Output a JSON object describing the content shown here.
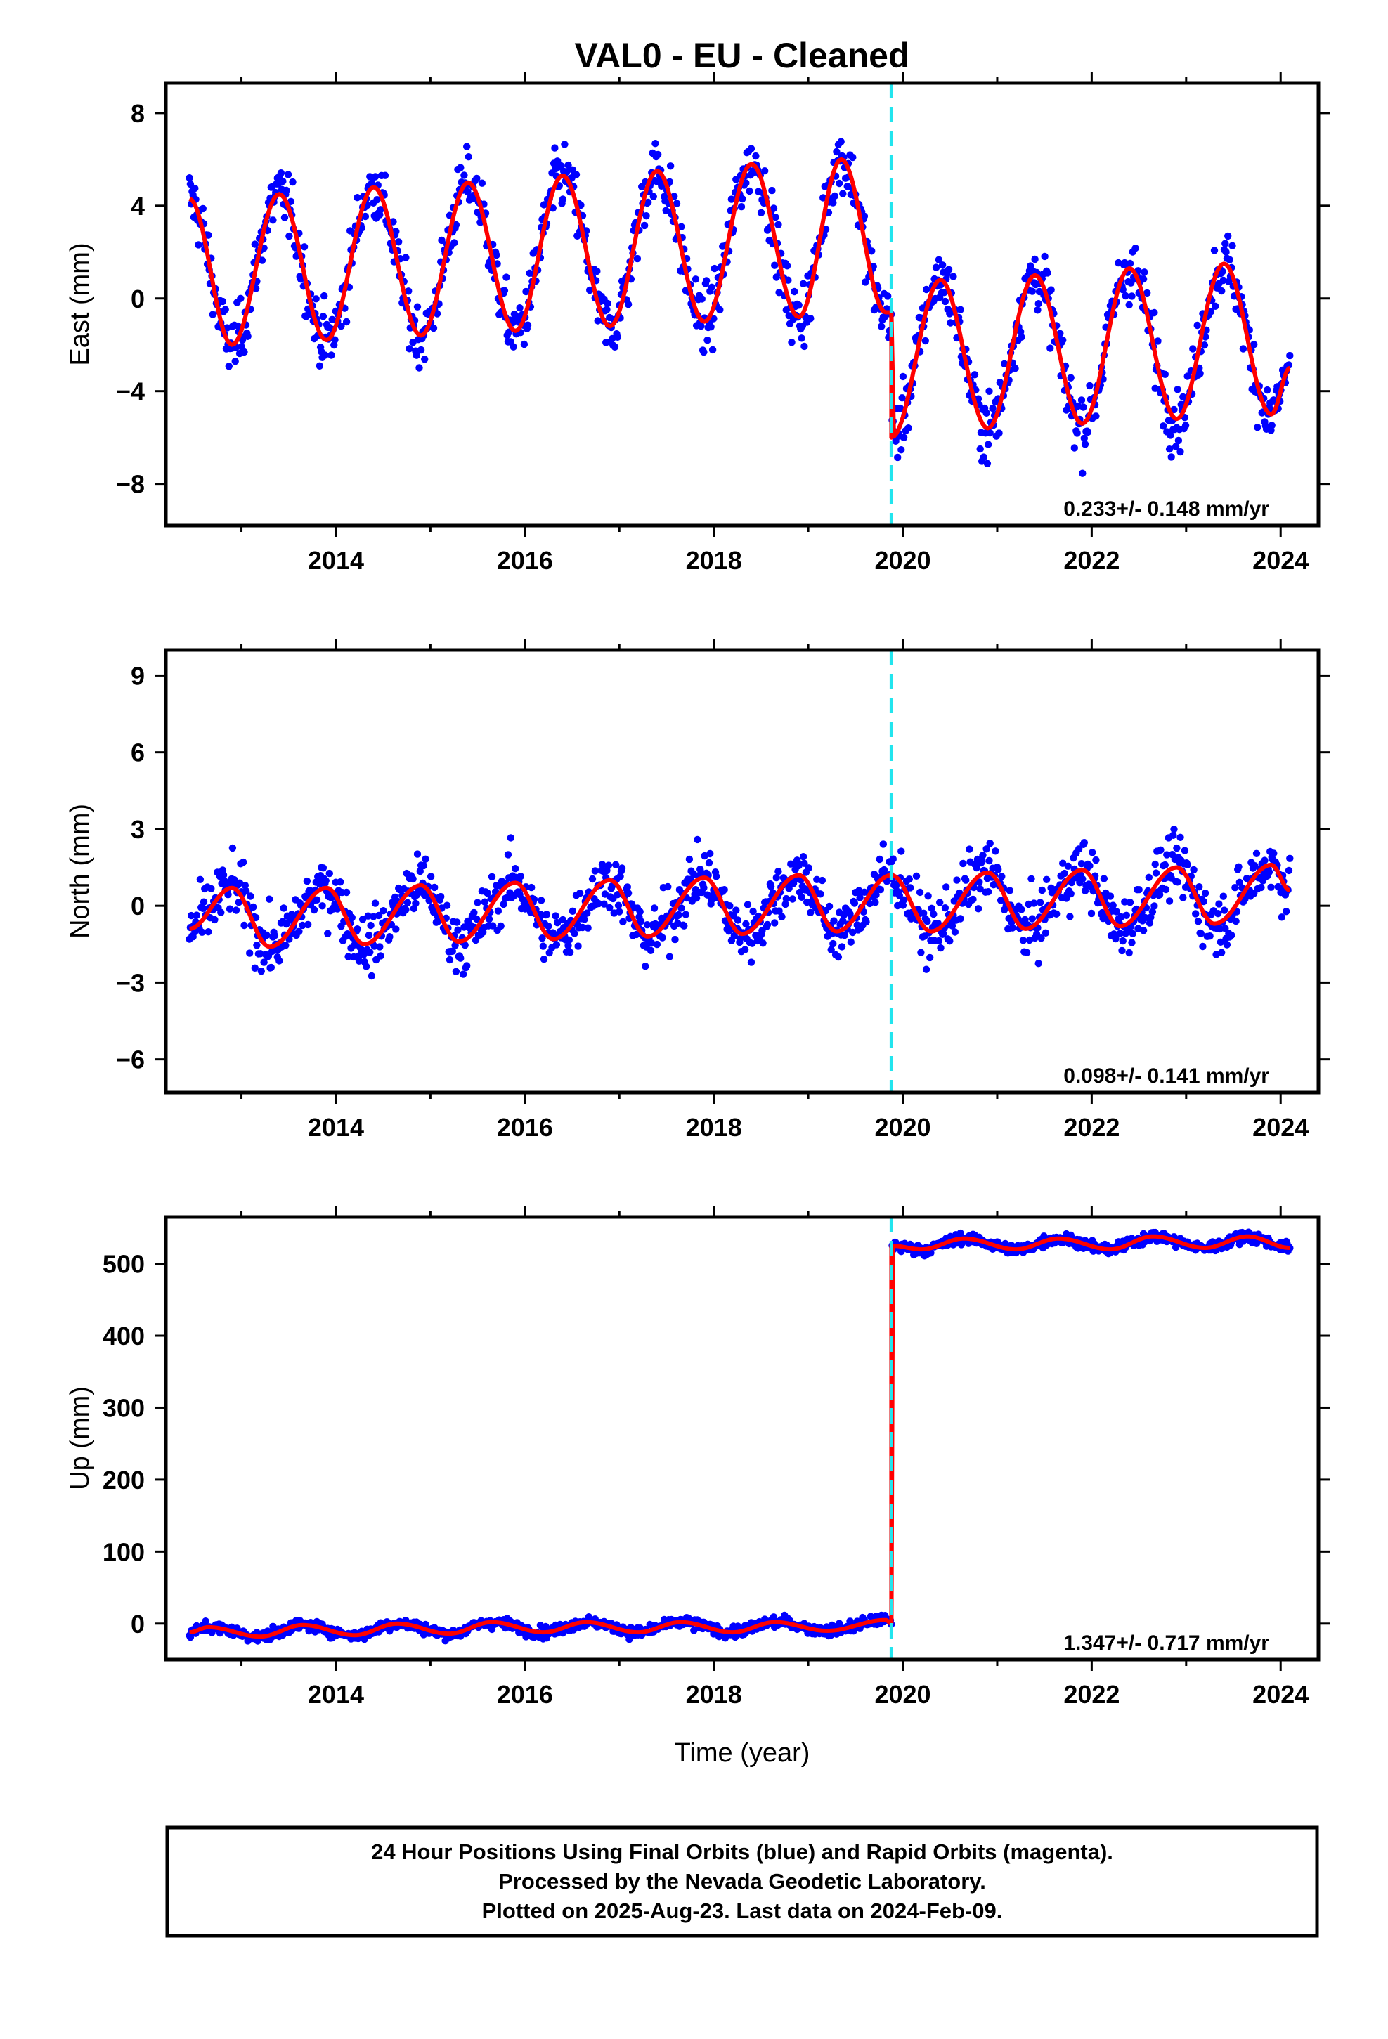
{
  "title": "VAL0  - EU - Cleaned",
  "xlabel": "Time (year)",
  "footer": {
    "line1": "24 Hour Positions Using Final Orbits (blue) and Rapid Orbits (magenta).",
    "line2": "Processed by the Nevada Geodetic Laboratory.",
    "line3": "Plotted on 2025-Aug-23. Last data on 2024-Feb-09."
  },
  "colors": {
    "points": "#0000ff",
    "model": "#ff0000",
    "offset_line": "#22e5ee",
    "frame": "#000000"
  },
  "chart_data": [
    {
      "type": "scatter",
      "name": "east",
      "ylabel": "East (mm)",
      "rate_text": "0.233+/- 0.148 mm/yr",
      "xlim": [
        2012.2,
        2024.4
      ],
      "ylim": [
        -9.8,
        9.3
      ],
      "xticks": [
        2014,
        2016,
        2018,
        2020,
        2022,
        2024
      ],
      "yticks": [
        -8,
        -4,
        0,
        4,
        8
      ],
      "ytick_labels": [
        "−8",
        "−4",
        "0",
        "4",
        "8"
      ],
      "offset_epoch": 2019.88,
      "point_color": "#0000ff",
      "model_color": "#ff0000",
      "model": [
        [
          2012.45,
          4.3
        ],
        [
          2012.9,
          -2.0
        ],
        [
          2013.4,
          4.5
        ],
        [
          2013.9,
          -1.8
        ],
        [
          2014.4,
          4.8
        ],
        [
          2014.9,
          -1.6
        ],
        [
          2015.4,
          5.0
        ],
        [
          2015.9,
          -1.4
        ],
        [
          2016.4,
          5.3
        ],
        [
          2016.9,
          -1.2
        ],
        [
          2017.4,
          5.5
        ],
        [
          2017.9,
          -1.0
        ],
        [
          2018.4,
          5.8
        ],
        [
          2018.9,
          -0.8
        ],
        [
          2019.35,
          6.0
        ],
        [
          2019.82,
          -0.6
        ],
        [
          2019.88,
          -0.6
        ],
        [
          2019.88,
          -6.0
        ],
        [
          2020.4,
          0.8
        ],
        [
          2020.9,
          -5.6
        ],
        [
          2021.4,
          1.0
        ],
        [
          2021.9,
          -5.4
        ],
        [
          2022.4,
          1.3
        ],
        [
          2022.9,
          -5.2
        ],
        [
          2023.4,
          1.5
        ],
        [
          2023.9,
          -5.0
        ],
        [
          2024.1,
          -3.0
        ]
      ]
    },
    {
      "type": "scatter",
      "name": "north",
      "ylabel": "North (mm)",
      "rate_text": "0.098+/- 0.141 mm/yr",
      "xlim": [
        2012.2,
        2024.4
      ],
      "ylim": [
        -7.3,
        10.0
      ],
      "xticks": [
        2014,
        2016,
        2018,
        2020,
        2022,
        2024
      ],
      "yticks": [
        -6,
        -3,
        0,
        3,
        6,
        9
      ],
      "ytick_labels": [
        "−6",
        "−3",
        "0",
        "3",
        "6",
        "9"
      ],
      "offset_epoch": 2019.88,
      "point_color": "#0000ff",
      "model_color": "#ff0000",
      "model": [
        [
          2012.45,
          -0.9
        ],
        [
          2012.9,
          0.7
        ],
        [
          2013.3,
          -1.6
        ],
        [
          2013.9,
          0.7
        ],
        [
          2014.3,
          -1.5
        ],
        [
          2014.9,
          0.8
        ],
        [
          2015.3,
          -1.4
        ],
        [
          2015.9,
          0.9
        ],
        [
          2016.3,
          -1.3
        ],
        [
          2016.9,
          1.0
        ],
        [
          2017.3,
          -1.2
        ],
        [
          2017.9,
          1.1
        ],
        [
          2018.3,
          -1.1
        ],
        [
          2018.9,
          1.2
        ],
        [
          2019.3,
          -1.0
        ],
        [
          2019.88,
          1.2
        ],
        [
          2020.3,
          -1.0
        ],
        [
          2020.9,
          1.3
        ],
        [
          2021.3,
          -0.9
        ],
        [
          2021.9,
          1.4
        ],
        [
          2022.3,
          -0.8
        ],
        [
          2022.9,
          1.5
        ],
        [
          2023.3,
          -0.7
        ],
        [
          2023.9,
          1.6
        ],
        [
          2024.1,
          0.6
        ]
      ]
    },
    {
      "type": "scatter",
      "name": "up",
      "ylabel": "Up (mm)",
      "rate_text": "1.347+/- 0.717 mm/yr",
      "xlim": [
        2012.2,
        2024.4
      ],
      "ylim": [
        -50,
        565
      ],
      "xticks": [
        2014,
        2016,
        2018,
        2020,
        2022,
        2024
      ],
      "yticks": [
        0,
        100,
        200,
        300,
        400,
        500
      ],
      "ytick_labels": [
        "0",
        "100",
        "200",
        "300",
        "400",
        "500"
      ],
      "offset_epoch": 2019.88,
      "point_color": "#0000ff",
      "model_color": "#ff0000",
      "model": [
        [
          2012.45,
          -12
        ],
        [
          2012.65,
          -5
        ],
        [
          2013.2,
          -18
        ],
        [
          2013.65,
          -2
        ],
        [
          2014.2,
          -16
        ],
        [
          2014.65,
          0
        ],
        [
          2015.2,
          -14
        ],
        [
          2015.65,
          2
        ],
        [
          2016.2,
          -12
        ],
        [
          2016.65,
          2
        ],
        [
          2017.2,
          -12
        ],
        [
          2017.65,
          2
        ],
        [
          2018.2,
          -12
        ],
        [
          2018.65,
          2
        ],
        [
          2019.2,
          -10
        ],
        [
          2019.82,
          5
        ],
        [
          2019.88,
          0
        ],
        [
          2019.88,
          525
        ],
        [
          2020.2,
          520
        ],
        [
          2020.65,
          535
        ],
        [
          2021.2,
          520
        ],
        [
          2021.65,
          535
        ],
        [
          2022.2,
          520
        ],
        [
          2022.65,
          538
        ],
        [
          2023.2,
          522
        ],
        [
          2023.65,
          538
        ],
        [
          2024.1,
          522
        ]
      ]
    }
  ]
}
